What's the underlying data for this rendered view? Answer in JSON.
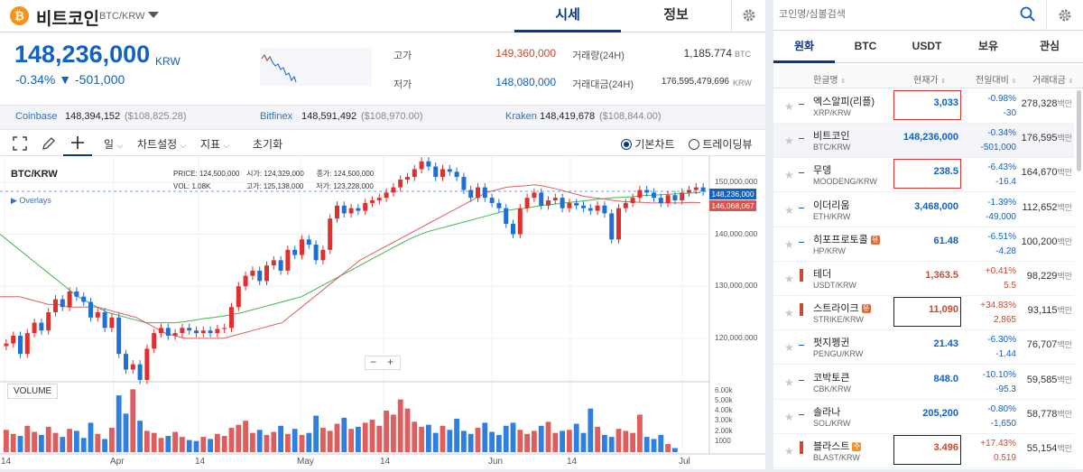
{
  "coin": {
    "name": "비트코인",
    "pair": "BTC/KRW",
    "icon_letter": "₿"
  },
  "tabs": [
    {
      "label": "시세"
    },
    {
      "label": "정보"
    }
  ],
  "ticker": {
    "price": "148,236,000",
    "unit": "KRW",
    "change_pct": "-0.34%",
    "change_amt": "▼ -501,000"
  },
  "stats": {
    "high_label": "고가",
    "high": "149,360,000",
    "low_label": "저가",
    "low": "148,080,000",
    "vol_label": "거래량(24H)",
    "vol": "1,185.774",
    "vol_unit": "BTC",
    "amt_label": "거래대금(24H)",
    "amt": "176,595,479,696",
    "amt_unit": "KRW"
  },
  "exchanges": [
    {
      "name": "Coinbase",
      "krw": "148,394,152",
      "usd": "($108,825.28)"
    },
    {
      "name": "Bitfinex",
      "krw": "148,591,492",
      "usd": "($108,970.00)"
    },
    {
      "name": "Kraken",
      "krw": "148,419,678",
      "usd": "($108,844.00)"
    }
  ],
  "toolbar": {
    "period": "일",
    "chart_settings": "차트설정",
    "indicator": "지표",
    "reset": "초기화",
    "basic_chart": "기본차트",
    "tradingview": "트레이딩뷰"
  },
  "chart": {
    "pair": "BTC/KRW",
    "ohlc": {
      "price_l": "PRICE:",
      "price": "124,500,000",
      "open_l": "시가:",
      "open": "124,329,000",
      "close_l": "종가:",
      "close": "124,500,000",
      "vol_l": "VOL:",
      "vol": "1.08K",
      "high_l": "고가:",
      "high": "125,138,000",
      "low_l": "저가:",
      "low": "123,228,000"
    },
    "overlays": "Overlays",
    "volume_label": "VOLUME",
    "current_label": "148,236,000",
    "ma_label": "146,068,067",
    "y_ticks": [
      "150,000,000",
      "140,000,000",
      "130,000,000",
      "120,000,000"
    ],
    "vol_ticks": [
      "6.00k",
      "5.00k",
      "4.00k",
      "3.00k",
      "2.00k",
      "1000"
    ],
    "x_ticks": [
      "14",
      "Apr",
      "14",
      "May",
      "14",
      "Jun",
      "14",
      "Jul"
    ],
    "zoom_minus": "−",
    "zoom_plus": "+"
  },
  "chart_data": {
    "type": "candlestick",
    "title": "BTC/KRW",
    "ylim": [
      112000000,
      155000000
    ],
    "last_price": 148236000,
    "ma_value": 146068067,
    "closes": [
      119,
      120.5,
      117,
      121,
      123,
      121.5,
      125,
      127.5,
      126,
      129,
      128,
      127,
      124,
      125,
      122,
      124,
      117,
      114,
      115,
      112,
      118,
      121,
      122,
      120.5,
      121,
      122,
      121.5,
      121,
      121.5,
      121,
      121.8,
      122,
      126,
      130,
      132,
      133,
      131,
      134,
      135,
      133,
      137,
      136,
      139,
      138,
      135,
      137,
      143,
      145.5,
      144,
      145,
      144.5,
      146,
      146.5,
      147,
      148,
      149,
      150.5,
      151,
      152.5,
      154,
      153,
      151,
      152.5,
      152,
      151,
      148.5,
      147,
      149,
      147,
      146,
      145,
      142,
      140,
      145,
      147,
      148,
      145.5,
      146.5,
      147,
      145,
      146,
      145.5,
      145,
      144.5,
      145.5,
      144,
      139,
      145,
      146,
      147,
      148.5,
      148,
      147,
      146,
      147.5,
      146.5,
      148,
      148.5,
      149,
      148.2
    ],
    "volumes": [
      2200,
      1800,
      1600,
      2600,
      2000,
      1700,
      2500,
      1900,
      1500,
      2300,
      2100,
      1400,
      2900,
      1800,
      1300,
      2400,
      5600,
      3800,
      6200,
      3100,
      2100,
      1900,
      1400,
      1600,
      2000,
      1500,
      1200,
      1100,
      1500,
      1300,
      1800,
      1600,
      2400,
      2700,
      3100,
      1900,
      2200,
      1700,
      2000,
      2600,
      1800,
      2300,
      1700,
      1900,
      3600,
      2400,
      2100,
      2800,
      3400,
      2300,
      2500,
      2900,
      3200,
      2600,
      4100,
      3700,
      5200,
      4300,
      3000,
      2500,
      2700,
      1900,
      2600,
      2200,
      3300,
      2100,
      1800,
      2400,
      2900,
      2000,
      1700,
      2600,
      2900,
      2200,
      1800,
      2100,
      2600,
      3000,
      1900,
      2100,
      2200,
      2800,
      1900,
      4300,
      2500,
      1700,
      1500,
      2300,
      2100,
      1900,
      3700,
      1500,
      1300,
      1700,
      800,
      400
    ],
    "ma_short": [
      128,
      128,
      128,
      127.5,
      127,
      126.5,
      126.5,
      126,
      126,
      126,
      126,
      125.5,
      125,
      124.5,
      124,
      123,
      122,
      121,
      120.5,
      120,
      120,
      120,
      120,
      120,
      120.5,
      121,
      121.5,
      122,
      122.5,
      123,
      124.5,
      126,
      127.5,
      129,
      130.5,
      132,
      133.5,
      135,
      136,
      137,
      138,
      139,
      140,
      141,
      142,
      143,
      144,
      145,
      146,
      147,
      148,
      148.5,
      149,
      149.2,
      149.3,
      149.5,
      149.2,
      148.8,
      148.3,
      147.8,
      147.3,
      147,
      146.8,
      146.5,
      146.3,
      146.2,
      146.1,
      146,
      146,
      146,
      146,
      146.1,
      146.07
    ],
    "ma_long": [
      140,
      138.5,
      137,
      135.5,
      134,
      132.5,
      131,
      129.5,
      128,
      127,
      126,
      125,
      124.5,
      124,
      123.5,
      123,
      123,
      123,
      123,
      123.2,
      123.5,
      123.8,
      124,
      124.3,
      124.6,
      125,
      125.5,
      126,
      126.5,
      127,
      127.5,
      128,
      129,
      130,
      131,
      132,
      133,
      134,
      135,
      136,
      137,
      138,
      139,
      139.8,
      140.5,
      141,
      141.5,
      142,
      142.5,
      143,
      143.5,
      144,
      144.5,
      144.8,
      145,
      145.3,
      145.6,
      145.8,
      146,
      146.2,
      146.4,
      146.6,
      146.8,
      147,
      147.1,
      147.2,
      147.4,
      147.5,
      147.6,
      147.7,
      147.8,
      147.9,
      148
    ]
  },
  "market": {
    "search_placeholder": "코인명/심볼검색",
    "tabs": [
      {
        "label": "원화"
      },
      {
        "label": "BTC"
      },
      {
        "label": "USDT"
      },
      {
        "label": "보유"
      },
      {
        "label": "관심"
      }
    ],
    "headers": {
      "name": "한글명",
      "price": "현재가",
      "change": "전일대비",
      "volume": "거래대금"
    },
    "vol_unit": "백만",
    "rows": [
      {
        "name": "엑스알피(리플)",
        "sym": "XRP/KRW",
        "price": "3,033",
        "pct": "-0.98%",
        "diff": "-30",
        "vol": "278,328",
        "dir": "dn",
        "box": "red"
      },
      {
        "name": "비트코인",
        "sym": "BTC/KRW",
        "price": "148,236,000",
        "pct": "-0.34%",
        "diff": "-501,000",
        "vol": "176,595",
        "dir": "dn",
        "sel": true
      },
      {
        "name": "무뎅",
        "sym": "MOODENG/KRW",
        "price": "238.5",
        "pct": "-6.43%",
        "diff": "-16.4",
        "vol": "164,670",
        "dir": "dn",
        "box": "red"
      },
      {
        "name": "이더리움",
        "sym": "ETH/KRW",
        "price": "3,468,000",
        "pct": "-1.39%",
        "diff": "-49,000",
        "vol": "112,652",
        "dir": "dn"
      },
      {
        "name": "히포프로토콜",
        "sym": "HP/KRW",
        "price": "61.48",
        "pct": "-6.51%",
        "diff": "-4.28",
        "vol": "100,200",
        "dir": "dn",
        "badge": "유"
      },
      {
        "name": "테더",
        "sym": "USDT/KRW",
        "price": "1,363.5",
        "pct": "+0.41%",
        "diff": "5.5",
        "vol": "98,229",
        "dir": "up"
      },
      {
        "name": "스트라이크",
        "sym": "STRIKE/KRW",
        "price": "11,090",
        "pct": "+34.83%",
        "diff": "2,865",
        "vol": "93,115",
        "dir": "up",
        "box": "blk",
        "badge": "유"
      },
      {
        "name": "펏지펭귄",
        "sym": "PENGU/KRW",
        "price": "21.43",
        "pct": "-6.30%",
        "diff": "-1.44",
        "vol": "76,707",
        "dir": "dn"
      },
      {
        "name": "코박토큰",
        "sym": "CBK/KRW",
        "price": "848.0",
        "pct": "-10.10%",
        "diff": "-95.3",
        "vol": "59,585",
        "dir": "dn"
      },
      {
        "name": "솔라나",
        "sym": "SOL/KRW",
        "price": "205,200",
        "pct": "-0.80%",
        "diff": "-1,650",
        "vol": "58,778",
        "dir": "dn"
      },
      {
        "name": "블라스트",
        "sym": "BLAST/KRW",
        "price": "3.496",
        "pct": "+17.43%",
        "diff": "0.519",
        "vol": "55,154",
        "dir": "up",
        "box": "blk",
        "badge": "주"
      }
    ]
  }
}
